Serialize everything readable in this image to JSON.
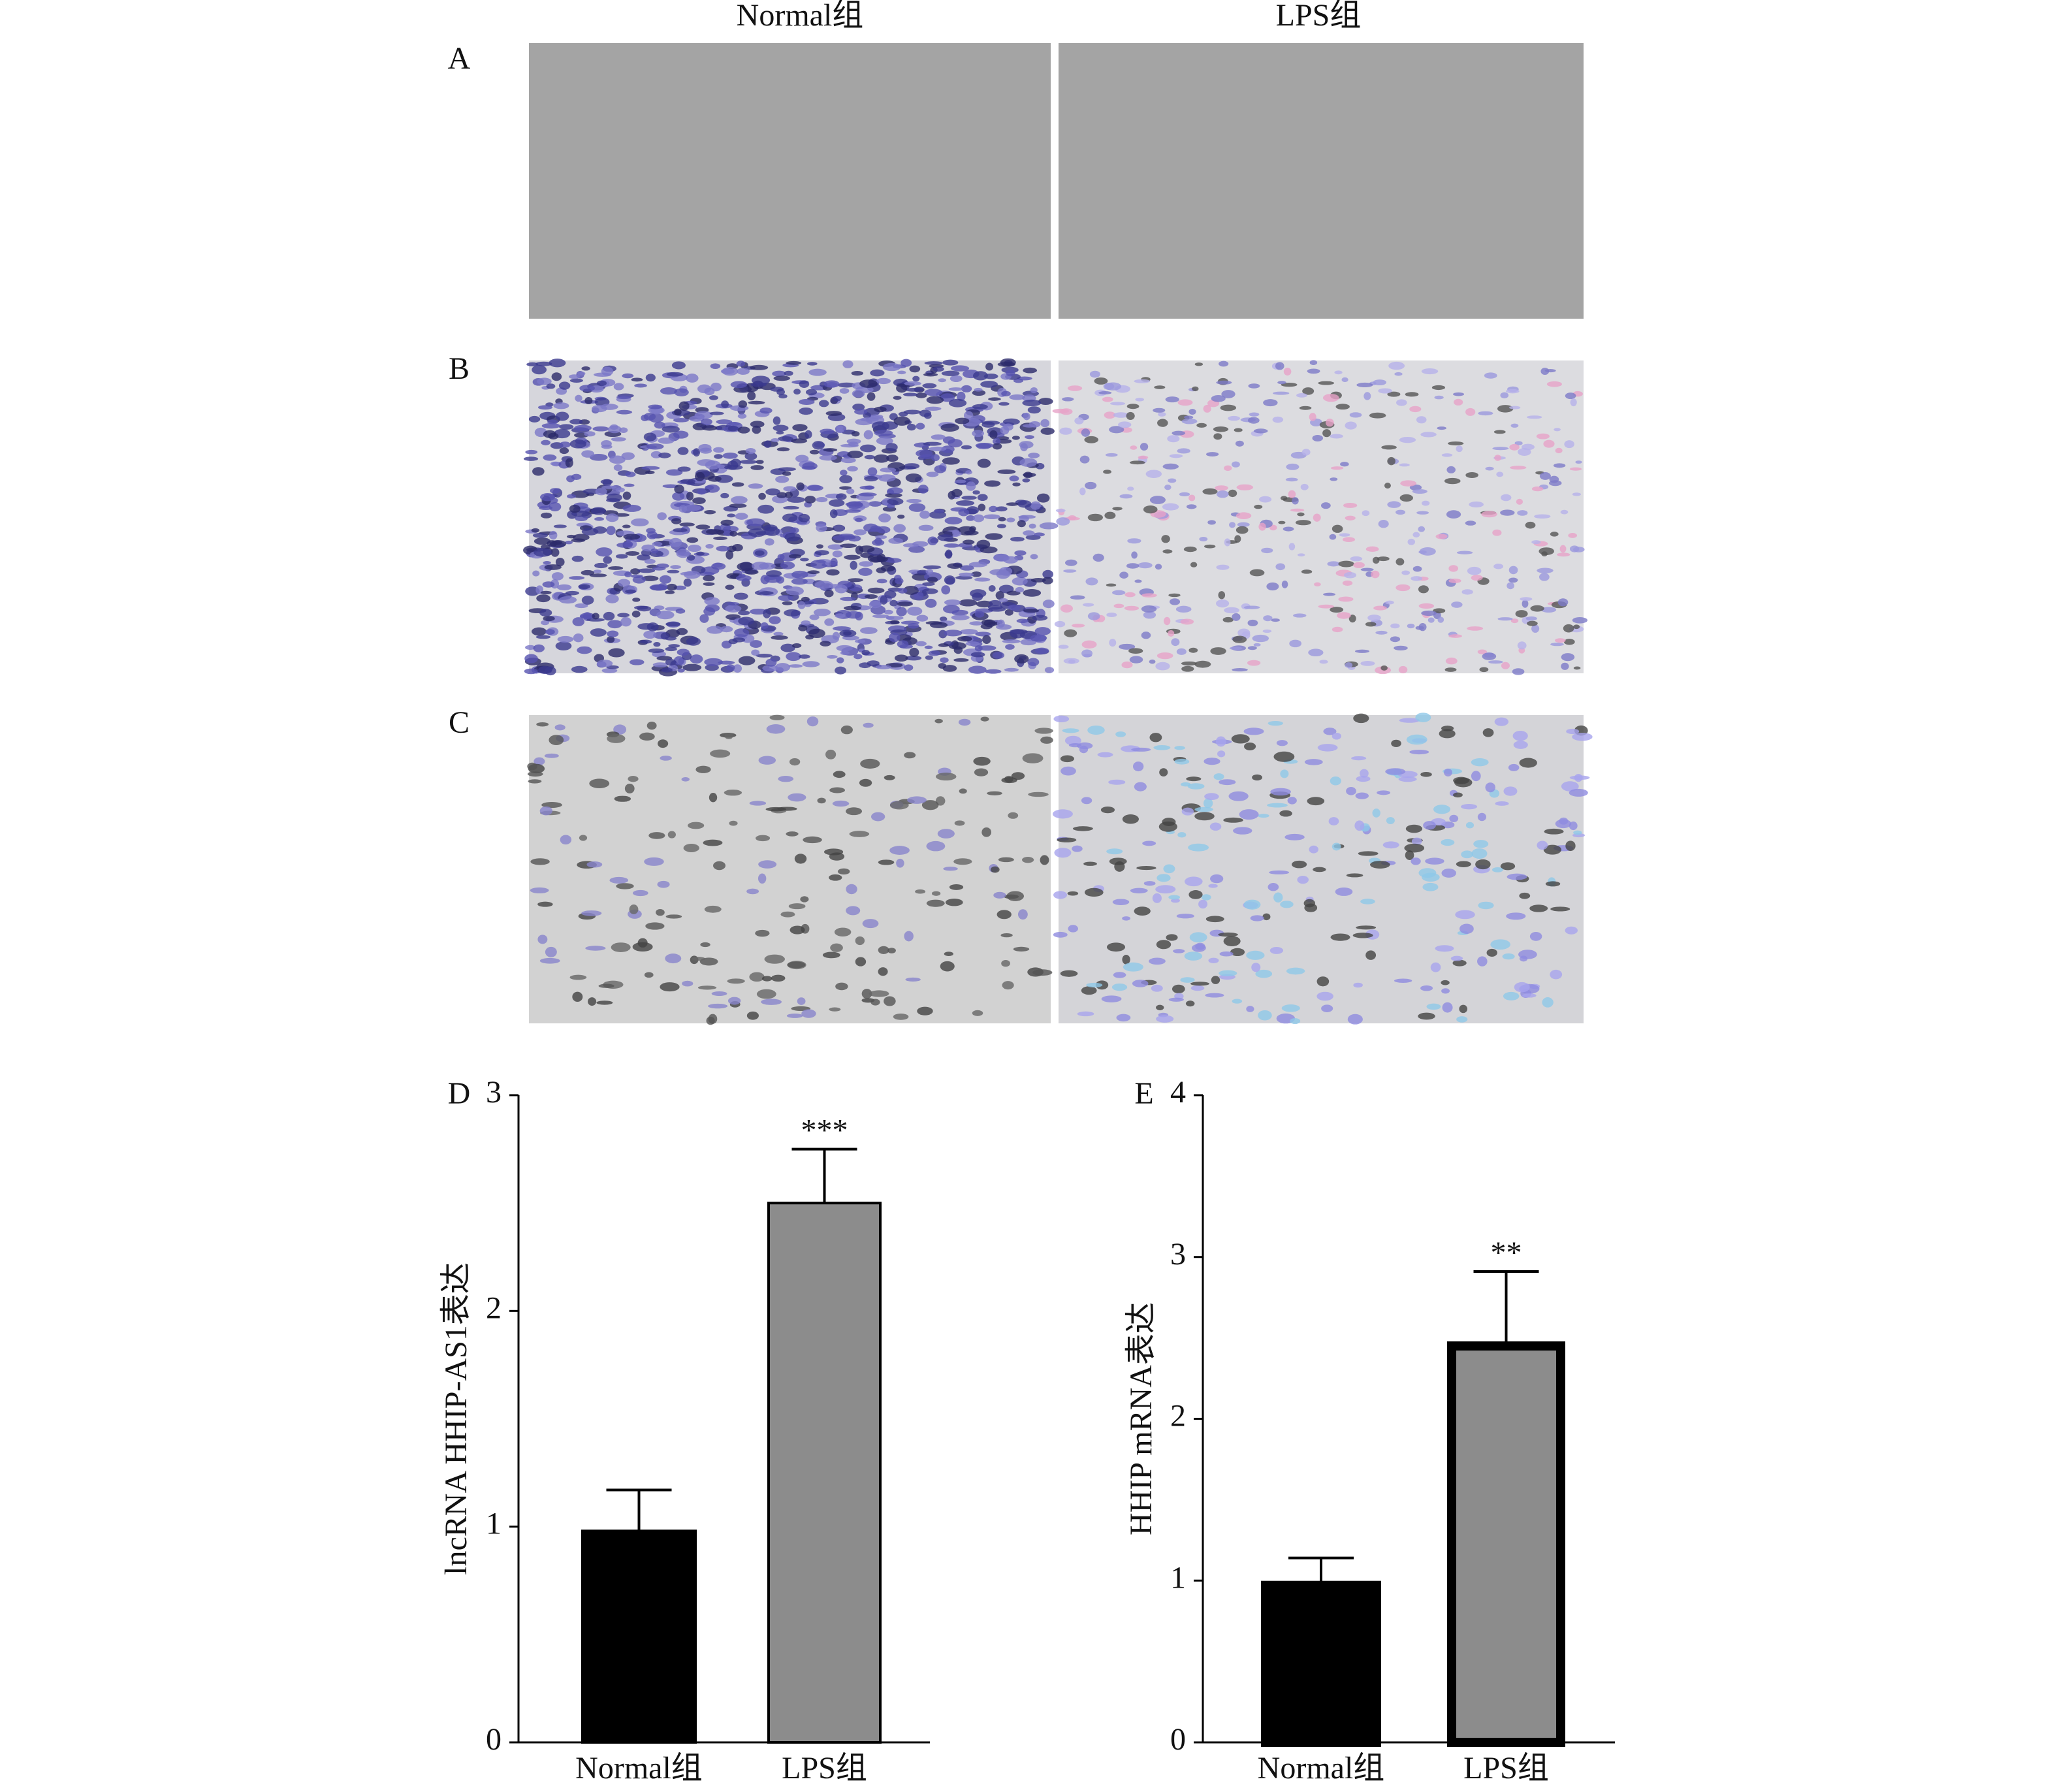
{
  "header": {
    "columns": [
      "Normal组",
      "LPS组"
    ]
  },
  "panels": [
    "A",
    "B",
    "C"
  ],
  "chart_data": [
    {
      "type": "bar",
      "panel_label": "D",
      "ylabel": "lncRNA HHIP-AS1表达",
      "categories": [
        "Normal组",
        "LPS组"
      ],
      "values": [
        0.98,
        2.5
      ],
      "errors": [
        0.19,
        0.25
      ],
      "significance": [
        null,
        "***"
      ],
      "colors": [
        "#000000",
        "#8c8c8c"
      ],
      "bar_edge_width": 4,
      "ylim": [
        0,
        3
      ],
      "yticks": [
        0,
        1,
        2,
        3
      ]
    },
    {
      "type": "bar",
      "panel_label": "E",
      "ylabel": "HHIP mRNA表达",
      "categories": [
        "Normal组",
        "LPS组"
      ],
      "values": [
        0.97,
        2.45
      ],
      "errors": [
        0.17,
        0.46
      ],
      "significance": [
        null,
        "**"
      ],
      "colors": [
        "#000000",
        "#8c8c8c"
      ],
      "bar_edge_width": 14,
      "ylim": [
        0,
        4
      ],
      "yticks": [
        0,
        1,
        2,
        3,
        4
      ]
    }
  ]
}
